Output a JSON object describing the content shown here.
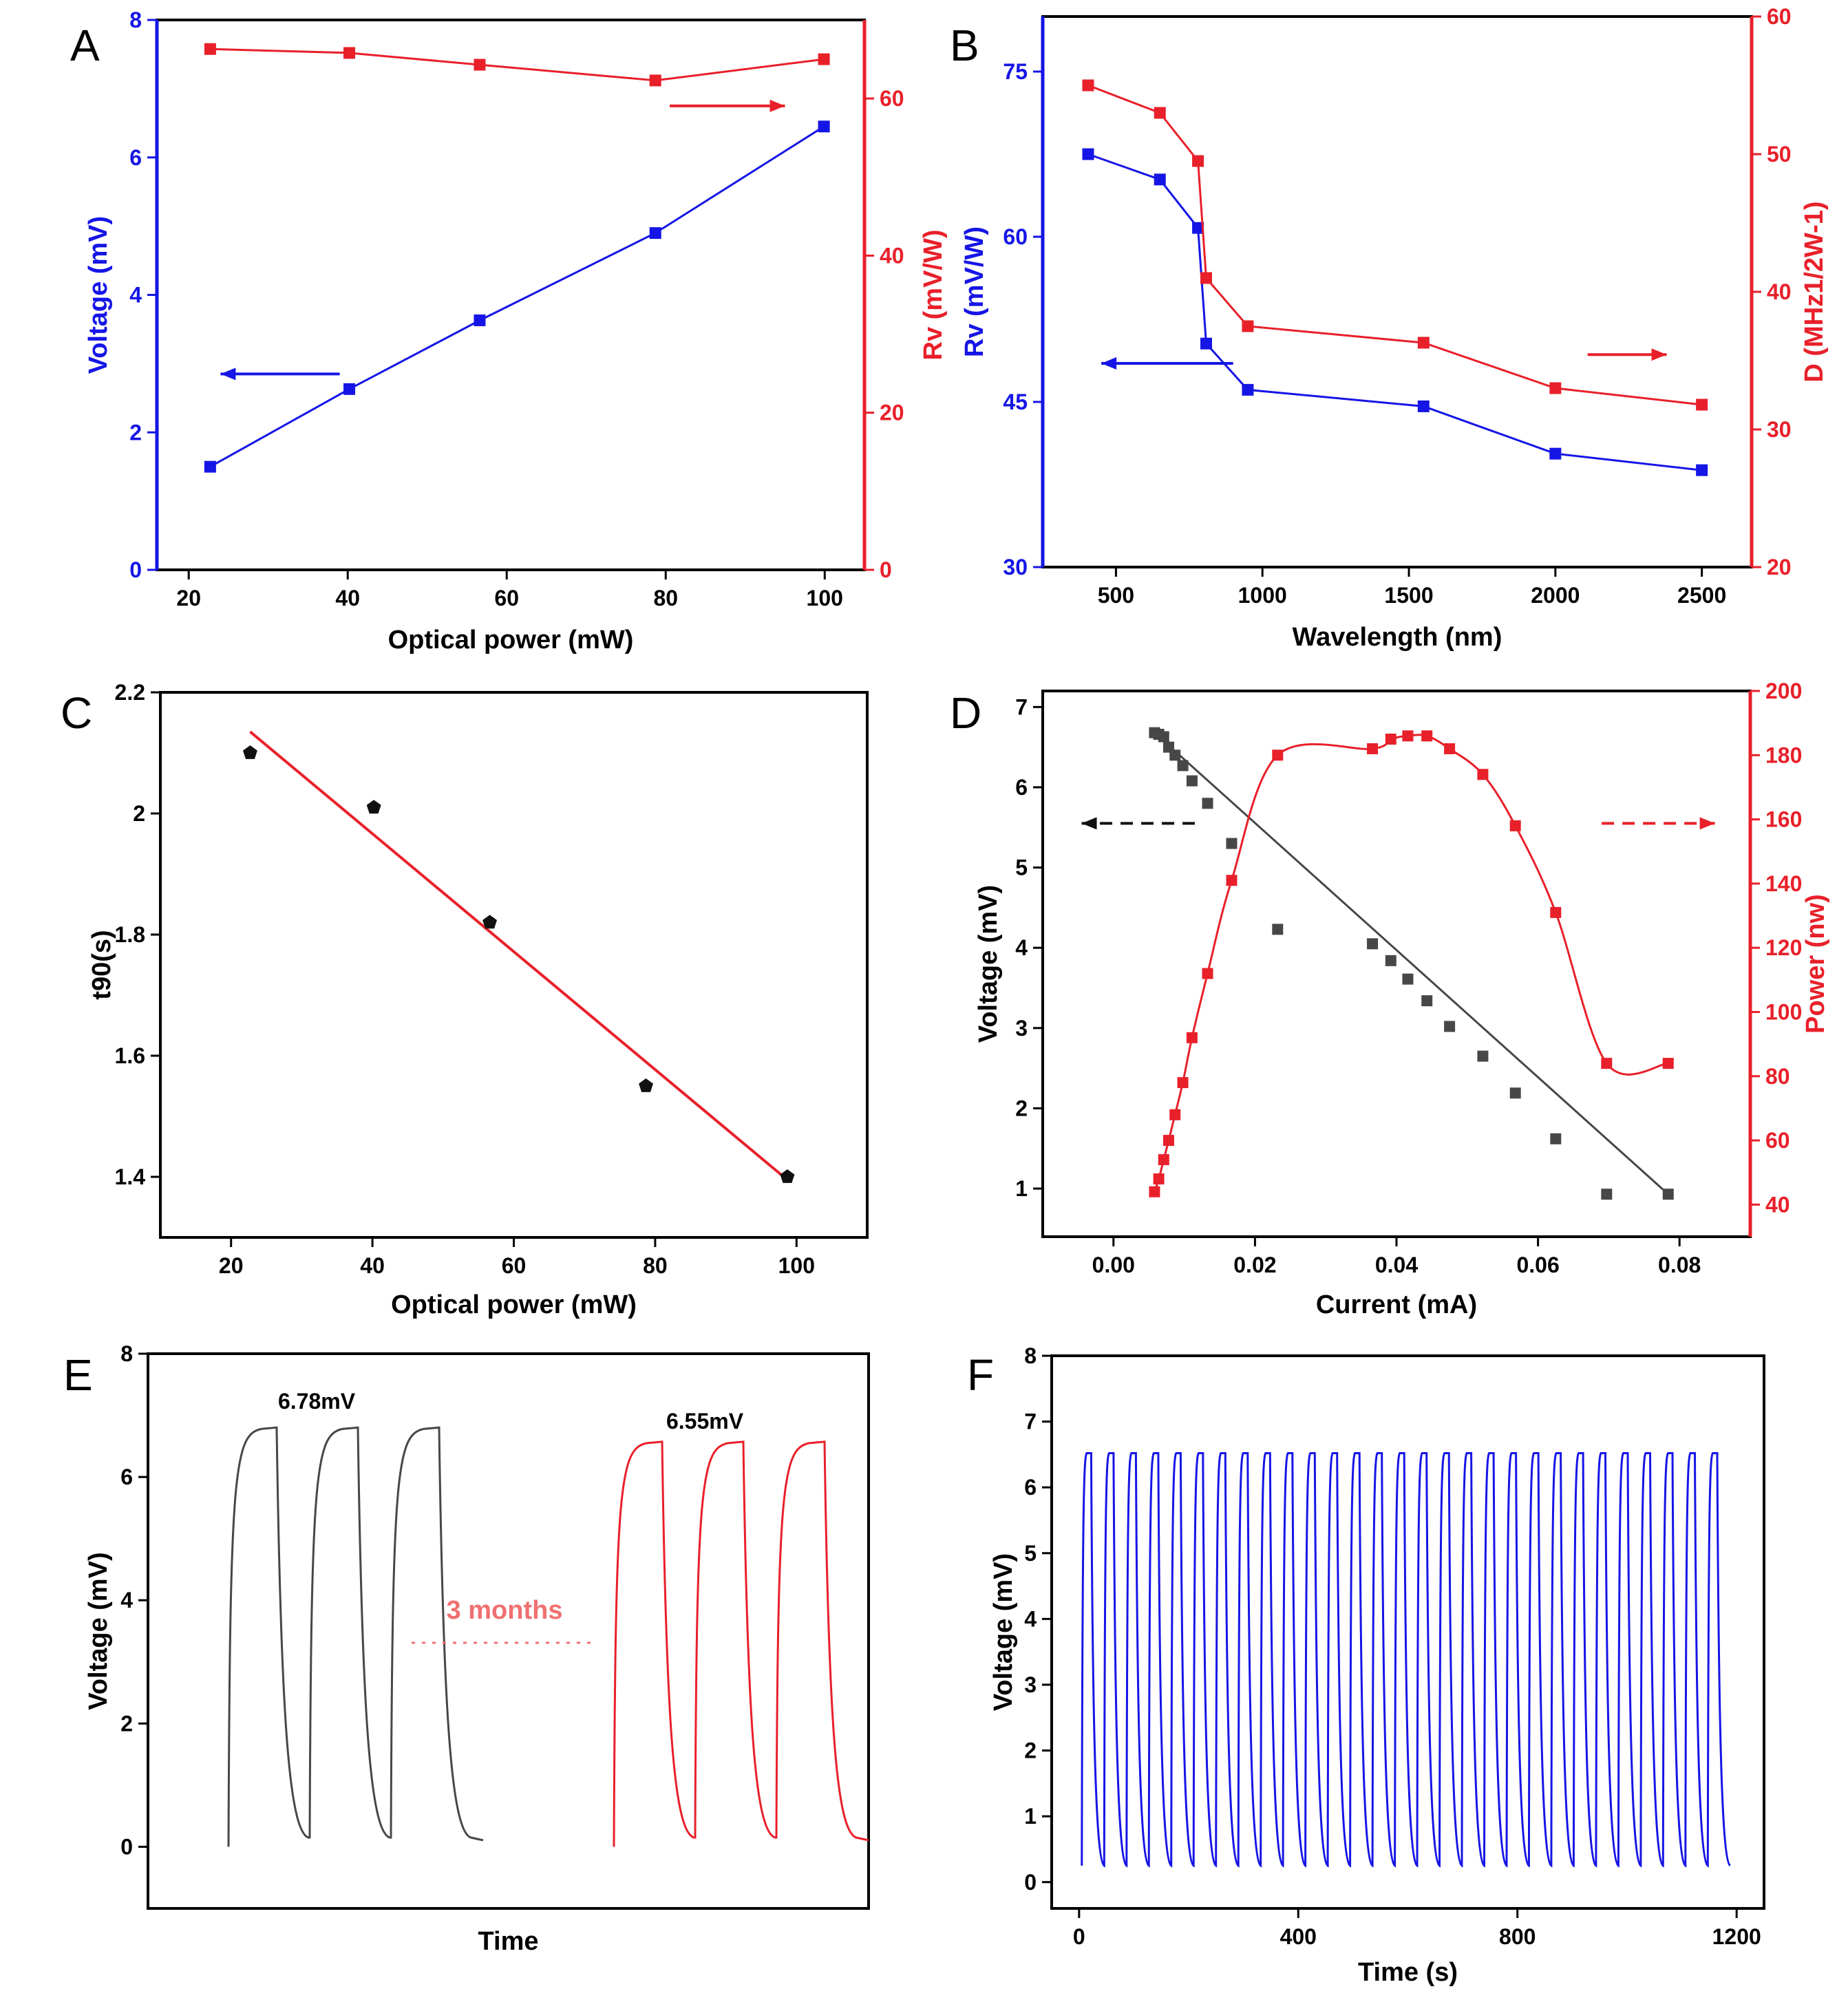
{
  "colors": {
    "blue": "#1515e6",
    "red": "#e8202a",
    "black": "#111111",
    "gray": "#474747",
    "pink": "#f07070"
  },
  "chart_data": [
    {
      "panel": "A",
      "type": "line",
      "title": "",
      "xlabel": "Optical power (mW)",
      "ylabel": "Voltage (mV)",
      "ylabel_right": "Rv (mV/W)",
      "xlim": [
        16,
        105
      ],
      "ylim": [
        0,
        8
      ],
      "ylim_right": [
        0,
        70
      ],
      "xticks": [
        20,
        40,
        60,
        80,
        100
      ],
      "yticks": [
        0,
        2,
        4,
        6,
        8
      ],
      "yticks_right": [
        0,
        20,
        40,
        60
      ],
      "series": [
        {
          "axis": "left",
          "color": "blue",
          "x": [
            22.7,
            40.2,
            56.6,
            78.7,
            99.9
          ],
          "y": [
            1.5,
            2.63,
            3.63,
            4.9,
            6.45
          ]
        },
        {
          "axis": "right",
          "color": "red",
          "x": [
            22.7,
            40.2,
            56.6,
            78.7,
            99.9
          ],
          "y": [
            66.3,
            65.8,
            64.3,
            62.3,
            65.0
          ]
        }
      ],
      "arrows": [
        {
          "from": [
            39,
            2.85
          ],
          "to": [
            24,
            2.85
          ],
          "color": "blue"
        },
        {
          "from": [
            80.5,
            6.75
          ],
          "to": [
            95,
            6.75
          ],
          "color": "red"
        }
      ],
      "grid": false,
      "legend": "none"
    },
    {
      "panel": "B",
      "type": "line",
      "title": "",
      "xlabel": "Wavelength (nm)",
      "ylabel": "Rv (mV/W)",
      "ylabel_right": "D (MHz1/2W-1)",
      "xlim": [
        250,
        2670
      ],
      "ylim": [
        30,
        80
      ],
      "ylim_right": [
        20,
        60
      ],
      "xticks": [
        500,
        1000,
        1500,
        2000,
        2500
      ],
      "yticks": [
        30,
        45,
        60,
        75
      ],
      "yticks_right": [
        20,
        30,
        40,
        50,
        60
      ],
      "series": [
        {
          "axis": "left",
          "color": "blue",
          "x": [
            405,
            650,
            780,
            808,
            950,
            1550,
            2000,
            2500
          ],
          "y": [
            67.5,
            65.2,
            60.8,
            50.3,
            46.1,
            44.6,
            40.3,
            38.8
          ]
        },
        {
          "axis": "right",
          "color": "red",
          "x": [
            405,
            650,
            780,
            808,
            950,
            1550,
            2000,
            2500
          ],
          "y": [
            55.0,
            53.0,
            49.5,
            41.0,
            37.5,
            36.3,
            33.0,
            31.8
          ]
        }
      ],
      "arrows": [
        {
          "from": [
            900,
            48.5
          ],
          "to": [
            450,
            48.5
          ],
          "color": "blue"
        },
        {
          "from": [
            2110,
            49.3
          ],
          "to": [
            2380,
            49.3
          ],
          "color": "red"
        }
      ],
      "grid": false,
      "legend": "none"
    },
    {
      "panel": "C",
      "type": "scatter",
      "title": "",
      "xlabel": "Optical power (mW)",
      "ylabel": "t90(s)",
      "xlim": [
        10,
        110
      ],
      "ylim": [
        1.3,
        2.2
      ],
      "xticks": [
        20,
        40,
        60,
        80,
        100
      ],
      "yticks": [
        1.4,
        1.6,
        1.8,
        2.0,
        2.2
      ],
      "series": [
        {
          "kind": "points",
          "color": "black",
          "x": [
            22.7,
            40.2,
            56.6,
            78.7,
            98.7
          ],
          "y": [
            2.1,
            2.01,
            1.82,
            1.55,
            1.4
          ]
        },
        {
          "kind": "fit-line",
          "color": "red",
          "x": [
            22.7,
            98.7
          ],
          "y": [
            2.135,
            1.395
          ]
        }
      ],
      "grid": false,
      "legend": "none"
    },
    {
      "panel": "D",
      "type": "line",
      "title": "",
      "xlabel": "Current (mA)",
      "ylabel": "Voltage (mV)",
      "ylabel_right": "Power (nw)",
      "xlim": [
        -0.01,
        0.09
      ],
      "ylim": [
        0.4,
        7.2
      ],
      "ylim_right": [
        30,
        200
      ],
      "xticks": [
        0.0,
        0.02,
        0.04,
        0.06,
        0.08
      ],
      "xtick_labels": [
        "0.00",
        "0.02",
        "0.04",
        "0.06",
        "0.08"
      ],
      "yticks": [
        1,
        2,
        3,
        4,
        5,
        6,
        7
      ],
      "yticks_right": [
        40,
        60,
        80,
        100,
        120,
        140,
        160,
        180,
        200
      ],
      "series": [
        {
          "axis": "left",
          "color": "gray",
          "x": [
            0.0058,
            0.0064,
            0.0071,
            0.0078,
            0.0087,
            0.0098,
            0.0111,
            0.0133,
            0.0167,
            0.0232,
            0.0366,
            0.0392,
            0.0416,
            0.0443,
            0.0475,
            0.0522,
            0.0568,
            0.0625,
            0.0697,
            0.0784
          ],
          "y": [
            6.68,
            6.66,
            6.63,
            6.5,
            6.4,
            6.27,
            6.08,
            5.8,
            5.3,
            4.23,
            4.05,
            3.84,
            3.61,
            3.34,
            3.02,
            2.65,
            2.19,
            1.62,
            0.93,
            0.93
          ]
        },
        {
          "axis": "right",
          "color": "red",
          "x": [
            0.0058,
            0.0064,
            0.0071,
            0.0078,
            0.0087,
            0.0098,
            0.0111,
            0.0133,
            0.0167,
            0.0232,
            0.0366,
            0.0392,
            0.0416,
            0.0443,
            0.0475,
            0.0522,
            0.0568,
            0.0625,
            0.0697,
            0.0784
          ],
          "y": [
            44,
            48,
            54,
            60,
            68,
            78,
            92,
            112,
            141,
            180,
            182,
            185,
            186,
            186,
            182,
            174,
            158,
            131,
            84,
            84
          ]
        }
      ],
      "arrows": [
        {
          "from": [
            0.0115,
            5.55
          ],
          "to": [
            -0.0045,
            5.55
          ],
          "color": "black",
          "dashed": true
        },
        {
          "from": [
            0.069,
            5.55
          ],
          "to": [
            0.085,
            5.55
          ],
          "color": "red",
          "dashed": true
        }
      ],
      "grid": false,
      "legend": "none"
    },
    {
      "panel": "E",
      "type": "line",
      "title": "",
      "xlabel": "Time",
      "ylabel": "Voltage (mV)",
      "ylim": [
        -1,
        8
      ],
      "yticks": [
        0,
        2,
        4,
        6,
        8
      ],
      "series": [
        {
          "color": "gray",
          "peak": 6.78,
          "cycles": 3
        },
        {
          "color": "red",
          "peak": 6.55,
          "cycles": 3
        }
      ],
      "annotations": [
        "6.78mV",
        "6.55mV",
        "3 months"
      ],
      "grid": false,
      "legend": "none"
    },
    {
      "panel": "F",
      "type": "line",
      "title": "",
      "xlabel": "Time (s)",
      "ylabel": "Voltage (mV)",
      "xlim": [
        -50,
        1250
      ],
      "ylim": [
        -0.4,
        8
      ],
      "xticks": [
        0,
        400,
        800,
        1200
      ],
      "yticks": [
        0,
        1,
        2,
        3,
        4,
        5,
        6,
        7,
        8
      ],
      "series": [
        {
          "color": "blue",
          "x_start": 5,
          "period": 40.8,
          "cycles": 29,
          "y_low": 0.25,
          "y_high": 6.52
        }
      ],
      "grid": false,
      "legend": "none"
    }
  ]
}
